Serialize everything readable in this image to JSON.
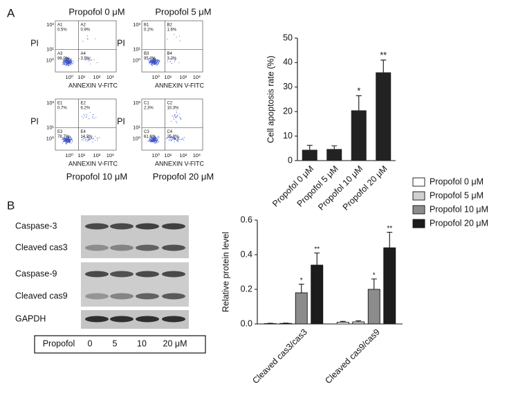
{
  "panel_labels": [
    "A",
    "B"
  ],
  "flow_plots": {
    "y_label": "PI",
    "x_label": "ANNEXIN V-FITC",
    "ticks": [
      "10⁰",
      "10¹",
      "10²",
      "10³"
    ],
    "plots": [
      {
        "title": "Propofol 0 μM",
        "quadrants": [
          {
            "name": "A1",
            "value": "0.5%"
          },
          {
            "name": "A2",
            "value": "0.9%"
          },
          {
            "name": "A3",
            "value": "96.0%"
          },
          {
            "name": "A4",
            "value": "3.5%"
          }
        ]
      },
      {
        "title": "Propofol 5 μM",
        "quadrants": [
          {
            "name": "B1",
            "value": "0.2%"
          },
          {
            "name": "B2",
            "value": "1.6%"
          },
          {
            "name": "B3",
            "value": "95.0%"
          },
          {
            "name": "B4",
            "value": "3.2%"
          }
        ]
      },
      {
        "title": "Propofol 10 μM",
        "quadrants": [
          {
            "name": "E1",
            "value": "0.7%"
          },
          {
            "name": "E2",
            "value": "6.2%"
          },
          {
            "name": "E3",
            "value": "78.7%"
          },
          {
            "name": "E4",
            "value": "14.3%"
          }
        ]
      },
      {
        "title": "Propofol 20 μM",
        "quadrants": [
          {
            "name": "C1",
            "value": "2.3%"
          },
          {
            "name": "C2",
            "value": "10.3%"
          },
          {
            "name": "C3",
            "value": "61.6%"
          },
          {
            "name": "C4",
            "value": "25.8%"
          }
        ]
      }
    ]
  },
  "western_blot": {
    "rows": [
      "Caspase-3",
      "Cleaved cas3",
      "Caspase-9",
      "Cleaved cas9",
      "GAPDH"
    ],
    "lane_header": "Propofol",
    "lanes": [
      "0",
      "5",
      "10",
      "20 μM"
    ]
  },
  "chart_data": [
    {
      "type": "bar",
      "y_label": "Cell apoptosis rate (%)",
      "categories": [
        "Propofol 0 μM",
        "Propofol 5 μM",
        "Propofol 10 μM",
        "Propofol 20 μM"
      ],
      "values": [
        4.4,
        4.7,
        20.5,
        36
      ],
      "errors": [
        1.8,
        1.3,
        6,
        5
      ],
      "annotations": [
        null,
        null,
        "*",
        "**"
      ],
      "color": "#222222",
      "ylim": [
        0,
        50
      ],
      "yticks": [
        0,
        10,
        20,
        30,
        40,
        50
      ]
    },
    {
      "type": "grouped_bar",
      "y_label": "Relative protein level",
      "categories": [
        "Cleaved cas3/cas3",
        "Cleaved cas9/cas9"
      ],
      "series": [
        {
          "name": "Propofol 0 μM",
          "color": "#ffffff",
          "values": [
            0.002,
            0.01
          ],
          "errors": [
            0.002,
            0.005
          ],
          "annotations": [
            null,
            null
          ]
        },
        {
          "name": "Propofol 5 μM",
          "color": "#d0d0d0",
          "values": [
            0.003,
            0.012
          ],
          "errors": [
            0.002,
            0.006
          ],
          "annotations": [
            null,
            null
          ]
        },
        {
          "name": "Propofol 10 μM",
          "color": "#8c8c8c",
          "values": [
            0.18,
            0.2
          ],
          "errors": [
            0.05,
            0.06
          ],
          "annotations": [
            "*",
            "*"
          ]
        },
        {
          "name": "Propofol 20 μM",
          "color": "#1c1c1c",
          "values": [
            0.34,
            0.44
          ],
          "errors": [
            0.07,
            0.09
          ],
          "annotations": [
            "**",
            "**"
          ]
        }
      ],
      "ylim": [
        0,
        0.6
      ],
      "yticks": [
        {
          "value": 0,
          "label": "0.0"
        },
        0.2,
        0.4,
        0.6
      ],
      "legend": "top-right"
    }
  ]
}
